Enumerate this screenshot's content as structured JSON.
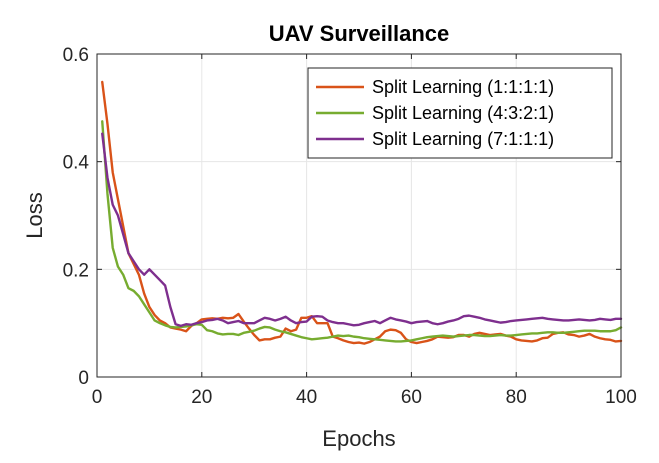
{
  "chart_data": {
    "type": "line",
    "title": "UAV Surveillance",
    "xlabel": "Epochs",
    "ylabel": "Loss",
    "xlim": [
      0,
      100
    ],
    "ylim": [
      0,
      0.6
    ],
    "xticks": [
      0,
      20,
      40,
      60,
      80,
      100
    ],
    "xtick_labels": [
      "0",
      "20",
      "40",
      "60",
      "80",
      "100"
    ],
    "yticks": [
      0,
      0.2,
      0.4,
      0.6
    ],
    "ytick_labels": [
      "0",
      "0.2",
      "0.4",
      "0.6"
    ],
    "grid": true,
    "legend_position": "top-right",
    "x": [
      1,
      2,
      3,
      4,
      5,
      6,
      7,
      8,
      9,
      10,
      11,
      12,
      13,
      14,
      15,
      16,
      17,
      18,
      19,
      20,
      21,
      22,
      23,
      24,
      25,
      26,
      27,
      28,
      29,
      30,
      31,
      32,
      33,
      34,
      35,
      36,
      37,
      38,
      39,
      40,
      41,
      42,
      43,
      44,
      45,
      46,
      47,
      48,
      49,
      50,
      51,
      52,
      53,
      54,
      55,
      56,
      57,
      58,
      59,
      60,
      61,
      62,
      63,
      64,
      65,
      66,
      67,
      68,
      69,
      70,
      71,
      72,
      73,
      74,
      75,
      76,
      77,
      78,
      79,
      80,
      81,
      82,
      83,
      84,
      85,
      86,
      87,
      88,
      89,
      90,
      91,
      92,
      93,
      94,
      95,
      96,
      97,
      98,
      99,
      100
    ],
    "series": [
      {
        "name": "Split Learning (1:1:1:1)",
        "color": "#d95319",
        "values": [
          0.548,
          0.47,
          0.38,
          0.33,
          0.28,
          0.23,
          0.21,
          0.19,
          0.155,
          0.13,
          0.115,
          0.105,
          0.1,
          0.092,
          0.09,
          0.088,
          0.085,
          0.095,
          0.1,
          0.107,
          0.108,
          0.109,
          0.108,
          0.11,
          0.109,
          0.11,
          0.117,
          0.103,
          0.09,
          0.078,
          0.068,
          0.07,
          0.07,
          0.073,
          0.075,
          0.09,
          0.085,
          0.088,
          0.11,
          0.11,
          0.113,
          0.1,
          0.1,
          0.1,
          0.075,
          0.072,
          0.068,
          0.065,
          0.063,
          0.064,
          0.062,
          0.065,
          0.07,
          0.075,
          0.085,
          0.088,
          0.087,
          0.082,
          0.07,
          0.065,
          0.063,
          0.065,
          0.067,
          0.07,
          0.075,
          0.074,
          0.073,
          0.074,
          0.078,
          0.078,
          0.075,
          0.08,
          0.082,
          0.08,
          0.078,
          0.079,
          0.08,
          0.077,
          0.075,
          0.07,
          0.068,
          0.067,
          0.066,
          0.068,
          0.072,
          0.073,
          0.08,
          0.082,
          0.083,
          0.079,
          0.078,
          0.075,
          0.077,
          0.08,
          0.075,
          0.072,
          0.07,
          0.069,
          0.066,
          0.067
        ]
      },
      {
        "name": "Split Learning (4:3:2:1)",
        "color": "#77ac30",
        "values": [
          0.475,
          0.34,
          0.24,
          0.205,
          0.19,
          0.165,
          0.16,
          0.15,
          0.135,
          0.12,
          0.105,
          0.1,
          0.096,
          0.093,
          0.092,
          0.093,
          0.094,
          0.096,
          0.098,
          0.097,
          0.087,
          0.085,
          0.081,
          0.079,
          0.08,
          0.08,
          0.078,
          0.082,
          0.084,
          0.086,
          0.09,
          0.093,
          0.092,
          0.088,
          0.085,
          0.083,
          0.08,
          0.077,
          0.074,
          0.072,
          0.07,
          0.071,
          0.072,
          0.073,
          0.075,
          0.077,
          0.076,
          0.077,
          0.075,
          0.074,
          0.072,
          0.071,
          0.07,
          0.069,
          0.068,
          0.067,
          0.066,
          0.066,
          0.067,
          0.068,
          0.07,
          0.072,
          0.074,
          0.075,
          0.076,
          0.077,
          0.076,
          0.075,
          0.076,
          0.077,
          0.078,
          0.078,
          0.077,
          0.076,
          0.076,
          0.077,
          0.078,
          0.077,
          0.077,
          0.078,
          0.079,
          0.08,
          0.081,
          0.081,
          0.082,
          0.083,
          0.083,
          0.082,
          0.082,
          0.083,
          0.084,
          0.085,
          0.086,
          0.086,
          0.086,
          0.085,
          0.085,
          0.085,
          0.087,
          0.092
        ]
      },
      {
        "name": "Split Learning (7:1:1:1)",
        "color": "#7e2f8e",
        "values": [
          0.452,
          0.37,
          0.32,
          0.3,
          0.265,
          0.23,
          0.215,
          0.2,
          0.19,
          0.2,
          0.19,
          0.18,
          0.17,
          0.13,
          0.098,
          0.095,
          0.098,
          0.097,
          0.1,
          0.102,
          0.105,
          0.106,
          0.108,
          0.105,
          0.1,
          0.102,
          0.104,
          0.1,
          0.1,
          0.1,
          0.105,
          0.11,
          0.108,
          0.105,
          0.108,
          0.112,
          0.105,
          0.1,
          0.102,
          0.103,
          0.112,
          0.113,
          0.112,
          0.105,
          0.102,
          0.1,
          0.1,
          0.098,
          0.096,
          0.097,
          0.1,
          0.102,
          0.104,
          0.1,
          0.105,
          0.11,
          0.107,
          0.105,
          0.103,
          0.1,
          0.102,
          0.103,
          0.104,
          0.1,
          0.098,
          0.1,
          0.103,
          0.105,
          0.108,
          0.113,
          0.114,
          0.112,
          0.11,
          0.107,
          0.105,
          0.103,
          0.101,
          0.102,
          0.104,
          0.105,
          0.106,
          0.107,
          0.108,
          0.109,
          0.11,
          0.108,
          0.107,
          0.106,
          0.105,
          0.105,
          0.106,
          0.107,
          0.106,
          0.105,
          0.106,
          0.108,
          0.107,
          0.106,
          0.108,
          0.108
        ]
      }
    ]
  }
}
